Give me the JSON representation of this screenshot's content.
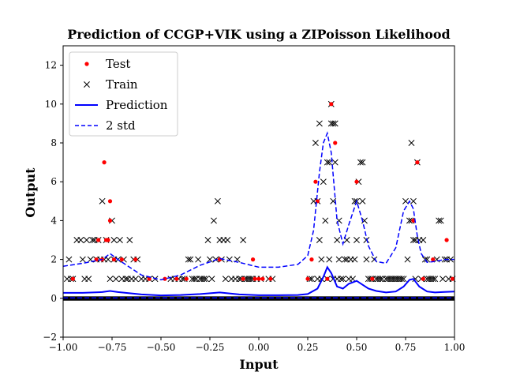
{
  "chart_data": {
    "type": "scatter",
    "title": "Prediction of CCGP+VIK using a ZIPoisson Likelihood",
    "xlabel": "Input",
    "ylabel": "Output",
    "xlim": [
      -1.0,
      1.0
    ],
    "ylim": [
      -2,
      13
    ],
    "x_ticks": [
      -1.0,
      -0.75,
      -0.5,
      -0.25,
      0.0,
      0.25,
      0.5,
      0.75,
      1.0
    ],
    "x_tick_labels": [
      "−1.00",
      "−0.75",
      "−0.50",
      "−0.25",
      "0.00",
      "0.25",
      "0.50",
      "0.75",
      "1.00"
    ],
    "y_ticks": [
      -2,
      0,
      2,
      4,
      6,
      8,
      10,
      12
    ],
    "y_tick_labels": [
      "−2",
      "0",
      "2",
      "4",
      "6",
      "8",
      "10",
      "12"
    ],
    "grid": false,
    "legend_position": "top-left",
    "legend": [
      {
        "label": "Test",
        "marker": "dot",
        "color": "#ff0000"
      },
      {
        "label": "Train",
        "marker": "x",
        "color": "#000000"
      },
      {
        "label": "Prediction",
        "marker": "line",
        "color": "#0000ff"
      },
      {
        "label": "2 std",
        "marker": "dashed",
        "color": "#0000ff"
      }
    ],
    "series": [
      {
        "name": "Train",
        "color": "#000000",
        "marker": "x",
        "points": [
          [
            -0.98,
            1
          ],
          [
            -0.97,
            2
          ],
          [
            -0.96,
            1
          ],
          [
            -0.95,
            1
          ],
          [
            -0.93,
            3
          ],
          [
            -0.91,
            3
          ],
          [
            -0.9,
            2
          ],
          [
            -0.89,
            1
          ],
          [
            -0.88,
            3
          ],
          [
            -0.87,
            1
          ],
          [
            -0.86,
            2
          ],
          [
            -0.85,
            3
          ],
          [
            -0.84,
            3
          ],
          [
            -0.83,
            2
          ],
          [
            -0.82,
            3
          ],
          [
            -0.81,
            2
          ],
          [
            -0.8,
            5
          ],
          [
            -0.79,
            2
          ],
          [
            -0.78,
            3
          ],
          [
            -0.77,
            2
          ],
          [
            -0.76,
            1
          ],
          [
            -0.75,
            4
          ],
          [
            -0.74,
            2
          ],
          [
            -0.74,
            3
          ],
          [
            -0.73,
            1
          ],
          [
            -0.72,
            2
          ],
          [
            -0.71,
            3
          ],
          [
            -0.7,
            1
          ],
          [
            -0.69,
            2
          ],
          [
            -0.68,
            1
          ],
          [
            -0.67,
            1
          ],
          [
            -0.66,
            3
          ],
          [
            -0.65,
            1
          ],
          [
            -0.64,
            2
          ],
          [
            -0.63,
            1
          ],
          [
            -0.62,
            2
          ],
          [
            -0.6,
            1
          ],
          [
            -0.58,
            1
          ],
          [
            -0.56,
            1
          ],
          [
            -0.53,
            1
          ],
          [
            -0.45,
            1
          ],
          [
            -0.43,
            1
          ],
          [
            -0.41,
            1
          ],
          [
            -0.39,
            1
          ],
          [
            -0.38,
            1
          ],
          [
            -0.36,
            2
          ],
          [
            -0.35,
            2
          ],
          [
            -0.34,
            1
          ],
          [
            -0.33,
            1
          ],
          [
            -0.32,
            1
          ],
          [
            -0.31,
            2
          ],
          [
            -0.3,
            1
          ],
          [
            -0.29,
            1
          ],
          [
            -0.28,
            1
          ],
          [
            -0.27,
            1
          ],
          [
            -0.26,
            3
          ],
          [
            -0.25,
            2
          ],
          [
            -0.24,
            1
          ],
          [
            -0.23,
            4
          ],
          [
            -0.22,
            2
          ],
          [
            -0.21,
            5
          ],
          [
            -0.2,
            3
          ],
          [
            -0.19,
            2
          ],
          [
            -0.18,
            3
          ],
          [
            -0.17,
            1
          ],
          [
            -0.16,
            3
          ],
          [
            -0.15,
            2
          ],
          [
            -0.14,
            1
          ],
          [
            -0.12,
            1
          ],
          [
            -0.11,
            2
          ],
          [
            -0.1,
            1
          ],
          [
            -0.09,
            1
          ],
          [
            -0.08,
            3
          ],
          [
            -0.07,
            1
          ],
          [
            -0.06,
            1
          ],
          [
            -0.05,
            1
          ],
          [
            -0.04,
            1
          ],
          [
            -0.03,
            1
          ],
          [
            -0.01,
            1
          ],
          [
            0.01,
            1
          ],
          [
            0.05,
            1
          ],
          [
            0.07,
            1
          ],
          [
            0.26,
            1
          ],
          [
            0.27,
            1
          ],
          [
            0.28,
            5
          ],
          [
            0.29,
            8
          ],
          [
            0.3,
            1
          ],
          [
            0.3,
            5
          ],
          [
            0.31,
            9
          ],
          [
            0.31,
            3
          ],
          [
            0.32,
            1
          ],
          [
            0.32,
            2
          ],
          [
            0.33,
            6
          ],
          [
            0.34,
            4
          ],
          [
            0.35,
            7
          ],
          [
            0.35,
            1
          ],
          [
            0.36,
            7
          ],
          [
            0.36,
            2
          ],
          [
            0.37,
            10
          ],
          [
            0.37,
            9
          ],
          [
            0.38,
            9
          ],
          [
            0.38,
            5
          ],
          [
            0.38,
            1
          ],
          [
            0.39,
            9
          ],
          [
            0.39,
            7
          ],
          [
            0.4,
            3
          ],
          [
            0.4,
            1
          ],
          [
            0.41,
            2
          ],
          [
            0.41,
            4
          ],
          [
            0.42,
            1
          ],
          [
            0.43,
            1
          ],
          [
            0.44,
            2
          ],
          [
            0.45,
            2
          ],
          [
            0.45,
            3
          ],
          [
            0.46,
            1
          ],
          [
            0.47,
            2
          ],
          [
            0.48,
            1
          ],
          [
            0.49,
            2
          ],
          [
            0.49,
            5
          ],
          [
            0.5,
            5
          ],
          [
            0.5,
            3
          ],
          [
            0.51,
            6
          ],
          [
            0.52,
            7
          ],
          [
            0.53,
            7
          ],
          [
            0.53,
            5
          ],
          [
            0.54,
            4
          ],
          [
            0.55,
            3
          ],
          [
            0.55,
            2
          ],
          [
            0.56,
            1
          ],
          [
            0.57,
            1
          ],
          [
            0.58,
            1
          ],
          [
            0.59,
            2
          ],
          [
            0.6,
            1
          ],
          [
            0.61,
            1
          ],
          [
            0.62,
            1
          ],
          [
            0.63,
            1
          ],
          [
            0.65,
            1
          ],
          [
            0.66,
            1
          ],
          [
            0.67,
            1
          ],
          [
            0.68,
            1
          ],
          [
            0.69,
            1
          ],
          [
            0.7,
            1
          ],
          [
            0.71,
            1
          ],
          [
            0.72,
            1
          ],
          [
            0.73,
            1
          ],
          [
            0.74,
            1
          ],
          [
            0.75,
            5
          ],
          [
            0.76,
            2
          ],
          [
            0.77,
            4
          ],
          [
            0.78,
            8
          ],
          [
            0.78,
            4
          ],
          [
            0.79,
            5
          ],
          [
            0.79,
            3
          ],
          [
            0.8,
            1
          ],
          [
            0.8,
            3
          ],
          [
            0.81,
            7
          ],
          [
            0.82,
            3
          ],
          [
            0.83,
            1
          ],
          [
            0.84,
            3
          ],
          [
            0.85,
            2
          ],
          [
            0.86,
            1
          ],
          [
            0.86,
            2
          ],
          [
            0.87,
            1
          ],
          [
            0.88,
            1
          ],
          [
            0.89,
            1
          ],
          [
            0.9,
            1
          ],
          [
            0.91,
            2
          ],
          [
            0.92,
            4
          ],
          [
            0.93,
            4
          ],
          [
            0.94,
            1
          ],
          [
            0.95,
            2
          ],
          [
            0.96,
            2
          ],
          [
            0.97,
            1
          ],
          [
            0.98,
            2
          ],
          [
            0.99,
            1
          ]
        ]
      },
      {
        "name": "Test",
        "color": "#ff0000",
        "marker": "dot",
        "points": [
          [
            -0.95,
            1
          ],
          [
            -0.83,
            2
          ],
          [
            -0.82,
            3
          ],
          [
            -0.8,
            2
          ],
          [
            -0.79,
            7
          ],
          [
            -0.78,
            3
          ],
          [
            -0.77,
            3
          ],
          [
            -0.76,
            4
          ],
          [
            -0.76,
            5
          ],
          [
            -0.74,
            2
          ],
          [
            -0.7,
            2
          ],
          [
            -0.63,
            2
          ],
          [
            -0.56,
            1
          ],
          [
            -0.48,
            1
          ],
          [
            -0.42,
            1
          ],
          [
            -0.37,
            1
          ],
          [
            -0.2,
            2
          ],
          [
            -0.08,
            1
          ],
          [
            -0.03,
            2
          ],
          [
            -0.02,
            1
          ],
          [
            0.0,
            1
          ],
          [
            0.02,
            1
          ],
          [
            0.06,
            1
          ],
          [
            0.25,
            1
          ],
          [
            0.27,
            2
          ],
          [
            0.29,
            6
          ],
          [
            0.3,
            5
          ],
          [
            0.35,
            1
          ],
          [
            0.37,
            10
          ],
          [
            0.39,
            8
          ],
          [
            0.5,
            6
          ],
          [
            0.58,
            1
          ],
          [
            0.79,
            4
          ],
          [
            0.81,
            7
          ],
          [
            0.84,
            1
          ],
          [
            0.89,
            2
          ],
          [
            0.96,
            3
          ],
          [
            0.99,
            1
          ]
        ]
      },
      {
        "name": "Prediction",
        "color": "#0000ff",
        "style": "solid",
        "x": [
          -1.0,
          -0.9,
          -0.8,
          -0.76,
          -0.72,
          -0.6,
          -0.5,
          -0.4,
          -0.3,
          -0.2,
          -0.1,
          0.0,
          0.1,
          0.2,
          0.25,
          0.3,
          0.33,
          0.35,
          0.37,
          0.4,
          0.43,
          0.46,
          0.5,
          0.53,
          0.56,
          0.6,
          0.65,
          0.7,
          0.74,
          0.77,
          0.79,
          0.82,
          0.86,
          0.9,
          0.95,
          1.0
        ],
        "values": [
          0.28,
          0.28,
          0.32,
          0.38,
          0.32,
          0.2,
          0.15,
          0.17,
          0.22,
          0.3,
          0.2,
          0.16,
          0.16,
          0.17,
          0.22,
          0.5,
          1.1,
          1.6,
          1.3,
          0.6,
          0.5,
          0.75,
          0.9,
          0.7,
          0.5,
          0.38,
          0.3,
          0.35,
          0.6,
          0.95,
          1.0,
          0.6,
          0.35,
          0.3,
          0.33,
          0.35
        ]
      },
      {
        "name": "2 std",
        "color": "#0000ff",
        "style": "dashed",
        "x": [
          -1.0,
          -0.9,
          -0.8,
          -0.76,
          -0.72,
          -0.6,
          -0.5,
          -0.4,
          -0.3,
          -0.2,
          -0.1,
          0.0,
          0.1,
          0.2,
          0.25,
          0.28,
          0.31,
          0.33,
          0.35,
          0.37,
          0.4,
          0.43,
          0.46,
          0.5,
          0.53,
          0.56,
          0.6,
          0.65,
          0.7,
          0.74,
          0.77,
          0.79,
          0.81,
          0.83,
          0.86,
          0.9,
          0.95,
          1.0
        ],
        "values": [
          1.65,
          1.8,
          2.0,
          2.3,
          2.0,
          1.2,
          0.95,
          1.2,
          1.7,
          2.05,
          1.85,
          1.6,
          1.6,
          1.75,
          2.2,
          3.5,
          6.5,
          8.0,
          8.5,
          7.5,
          4.0,
          2.8,
          3.8,
          5.0,
          4.0,
          2.7,
          1.9,
          1.8,
          2.6,
          4.5,
          5.0,
          4.6,
          3.2,
          2.3,
          1.85,
          1.9,
          2.0,
          2.0
        ]
      },
      {
        "name": "-2 std",
        "color": "#0000ff",
        "style": "dashed",
        "x": [
          -1.0,
          1.0
        ],
        "values": [
          0.02,
          0.02
        ]
      }
    ]
  }
}
